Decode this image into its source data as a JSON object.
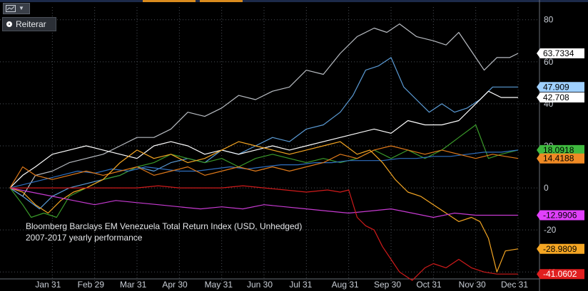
{
  "toolbar": {
    "chart_menu_icon": "line-chart-icon",
    "dropdown_icon": "caret-down-icon",
    "reiterar_label": "Reiterar"
  },
  "annotation": {
    "line1": "Bloomberg Barclays EM Venezuela Total Return Index (USD, Unhedged)",
    "line2": "2007-2017 yearly performance"
  },
  "colors": {
    "background": "#000000",
    "grid": "#4a4f57",
    "axis_text": "#c9ced6",
    "topbar": [
      "#1c2a4a",
      "#d98b1e",
      "#1c2a4a",
      "#d98b1e",
      "#1c2a4a"
    ]
  },
  "chart_data": {
    "type": "line",
    "title": "",
    "xlabel": "",
    "ylabel": "",
    "x_tick_labels": [
      "Jan 31",
      "Feb 29",
      "Mar 31",
      "Apr 30",
      "May 31",
      "Jun 30",
      "Jul 31",
      "Aug 31",
      "Sep 30",
      "Oct 31",
      "Nov 30",
      "Dec 31"
    ],
    "x_ticks": [
      1,
      2,
      3,
      4,
      5,
      6,
      7,
      8,
      9,
      10,
      11,
      12
    ],
    "xlim": [
      0,
      12
    ],
    "y_tick_labels": [
      "80",
      "60",
      "40",
      "20",
      "0",
      "-20",
      "-40"
    ],
    "y_ticks": [
      80,
      60,
      40,
      20,
      0,
      -20,
      -40
    ],
    "ylim": [
      -46,
      86
    ],
    "grid": true,
    "y_axis_side": "right",
    "series": [
      {
        "color": "#b8bcc2",
        "end_label": "63.7334",
        "label_bg": "#ffffff",
        "label_fg": "#000000",
        "x": [
          0,
          0.3,
          0.6,
          1.0,
          1.4,
          1.8,
          2.2,
          2.6,
          3.0,
          3.4,
          3.8,
          4.2,
          4.6,
          5.0,
          5.4,
          5.8,
          6.2,
          6.6,
          7.0,
          7.4,
          7.8,
          8.2,
          8.6,
          8.9,
          9.2,
          9.6,
          10.0,
          10.3,
          10.6,
          10.9,
          11.2,
          11.5,
          11.8,
          12.0
        ],
        "y": [
          0,
          -4,
          6,
          8,
          12,
          14,
          16,
          20,
          24,
          24,
          28,
          36,
          34,
          38,
          44,
          42,
          46,
          48,
          56,
          54,
          64,
          72,
          76,
          74,
          78,
          72,
          70,
          68,
          74,
          65,
          56,
          62,
          62,
          64
        ]
      },
      {
        "color": "#5b9bd5",
        "end_label": "47.909",
        "label_bg": "#9fd0ff",
        "label_fg": "#000000",
        "x": [
          0,
          0.3,
          0.7,
          1.0,
          1.4,
          1.8,
          2.2,
          2.6,
          3.0,
          3.4,
          3.8,
          4.2,
          4.6,
          5.0,
          5.4,
          5.8,
          6.2,
          6.6,
          7.0,
          7.4,
          7.8,
          8.1,
          8.4,
          8.7,
          9.0,
          9.3,
          9.6,
          9.9,
          10.2,
          10.5,
          10.8,
          11.1,
          11.4,
          11.7,
          12.0
        ],
        "y": [
          0,
          -4,
          -10,
          -4,
          0,
          2,
          4,
          6,
          10,
          8,
          12,
          14,
          12,
          18,
          16,
          20,
          24,
          22,
          28,
          30,
          36,
          44,
          56,
          58,
          62,
          48,
          42,
          36,
          40,
          36,
          38,
          42,
          48,
          48,
          48
        ]
      },
      {
        "color": "#ffffff",
        "end_label": "42.708",
        "label_bg": "#ffffff",
        "label_fg": "#000000",
        "x": [
          0,
          0.3,
          0.6,
          1.0,
          1.4,
          1.8,
          2.2,
          2.6,
          3.0,
          3.4,
          3.8,
          4.2,
          4.6,
          5.0,
          5.4,
          5.8,
          6.2,
          6.6,
          7.0,
          7.4,
          7.8,
          8.2,
          8.6,
          9.0,
          9.4,
          9.8,
          10.2,
          10.6,
          11.0,
          11.3,
          11.6,
          12.0
        ],
        "y": [
          0,
          6,
          10,
          16,
          18,
          20,
          18,
          16,
          14,
          20,
          22,
          20,
          16,
          18,
          16,
          18,
          20,
          18,
          20,
          22,
          24,
          26,
          28,
          26,
          32,
          30,
          30,
          32,
          40,
          46,
          43,
          43
        ]
      },
      {
        "color": "#3a9a2a",
        "end_label": "18.0918",
        "label_bg": "#3fb93f",
        "label_fg": "#000000",
        "x": [
          0,
          0.3,
          0.5,
          0.8,
          1.1,
          1.4,
          1.8,
          2.2,
          2.6,
          3.0,
          3.4,
          3.8,
          4.2,
          4.6,
          5.0,
          5.4,
          5.8,
          6.2,
          6.6,
          7.0,
          7.4,
          7.8,
          8.2,
          8.6,
          9.0,
          9.4,
          9.8,
          10.2,
          10.6,
          11.0,
          11.3,
          11.6,
          12.0
        ],
        "y": [
          0,
          -8,
          -14,
          -12,
          -14,
          -4,
          0,
          4,
          6,
          10,
          12,
          16,
          14,
          12,
          14,
          10,
          14,
          16,
          14,
          12,
          14,
          12,
          14,
          18,
          14,
          18,
          14,
          18,
          24,
          30,
          14,
          16,
          18
        ]
      },
      {
        "color": "#2f6fbf",
        "end_label": "",
        "label_bg": "",
        "label_fg": "",
        "x": [
          0,
          0.4,
          0.8,
          1.2,
          1.6,
          2.0,
          2.4,
          2.8,
          3.2,
          3.6,
          4.0,
          4.4,
          4.8,
          5.2,
          5.6,
          6.0,
          6.4,
          6.8,
          7.2,
          7.6,
          8.0,
          8.4,
          8.8,
          9.2,
          9.6,
          10.0,
          10.4,
          10.8,
          11.2,
          11.6,
          12.0
        ],
        "y": [
          0,
          2,
          4,
          6,
          8,
          7,
          9,
          8,
          10,
          9,
          8,
          8,
          9,
          10,
          9,
          10,
          11,
          11,
          12,
          12,
          13,
          13,
          13,
          14,
          14,
          15,
          15,
          16,
          17,
          17,
          18
        ]
      },
      {
        "color": "#e07a1a",
        "end_label": "14.4188",
        "label_bg": "#f08a24",
        "label_fg": "#000000",
        "x": [
          0,
          0.3,
          0.6,
          1.0,
          1.4,
          1.8,
          2.2,
          2.6,
          3.0,
          3.4,
          3.8,
          4.2,
          4.6,
          5.0,
          5.4,
          5.8,
          6.2,
          6.6,
          7.0,
          7.4,
          7.8,
          8.2,
          8.6,
          9.0,
          9.4,
          9.8,
          10.2,
          10.6,
          11.0,
          11.4,
          11.7,
          12.0
        ],
        "y": [
          0,
          10,
          6,
          4,
          6,
          8,
          6,
          8,
          10,
          6,
          8,
          10,
          6,
          8,
          10,
          8,
          10,
          8,
          10,
          12,
          16,
          14,
          18,
          20,
          18,
          16,
          18,
          16,
          14,
          16,
          15,
          14
        ]
      },
      {
        "color": "#f5a623",
        "end_label": "-28.9809",
        "label_bg": "#f5a623",
        "label_fg": "#000000",
        "x": [
          0,
          0.3,
          0.6,
          0.9,
          1.2,
          1.5,
          1.8,
          2.2,
          2.6,
          3.0,
          3.4,
          3.8,
          4.2,
          4.6,
          5.0,
          5.4,
          5.8,
          6.2,
          6.6,
          7.0,
          7.4,
          7.8,
          8.2,
          8.5,
          8.8,
          9.1,
          9.4,
          9.7,
          10.0,
          10.3,
          10.6,
          10.9,
          11.1,
          11.3,
          11.5,
          11.7,
          12.0
        ],
        "y": [
          0,
          -2,
          -8,
          -12,
          -6,
          -2,
          0,
          4,
          12,
          18,
          14,
          16,
          12,
          14,
          18,
          22,
          20,
          18,
          16,
          18,
          20,
          22,
          16,
          18,
          12,
          4,
          -2,
          -4,
          -8,
          -12,
          -16,
          -14,
          -16,
          -24,
          -40,
          -30,
          -29
        ]
      },
      {
        "color": "#c63ad1",
        "end_label": "-12.9906",
        "label_bg": "#e040fb",
        "label_fg": "#000000",
        "x": [
          0,
          0.5,
          1.0,
          1.5,
          2.0,
          2.5,
          3.0,
          3.5,
          4.0,
          4.5,
          5.0,
          5.5,
          6.0,
          6.5,
          7.0,
          7.5,
          8.0,
          8.5,
          9.0,
          9.5,
          10.0,
          10.5,
          11.0,
          11.5,
          12.0
        ],
        "y": [
          0,
          -2,
          -4,
          -6,
          -8,
          -6,
          -7,
          -8,
          -9,
          -10,
          -9,
          -10,
          -8,
          -9,
          -10,
          -11,
          -12,
          -11,
          -10,
          -12,
          -14,
          -12,
          -13,
          -13,
          -13
        ]
      },
      {
        "color": "#d01b1b",
        "end_label": "-41.0602",
        "label_bg": "#e01f1f",
        "label_fg": "#ffffff",
        "x": [
          0,
          0.5,
          1.0,
          1.5,
          2.0,
          2.5,
          3.0,
          3.5,
          4.0,
          4.5,
          5.0,
          5.5,
          6.0,
          6.5,
          7.0,
          7.5,
          7.8,
          8.0,
          8.2,
          8.4,
          8.6,
          8.8,
          9.0,
          9.2,
          9.5,
          9.8,
          10.0,
          10.3,
          10.6,
          10.9,
          11.2,
          11.5,
          12.0
        ],
        "y": [
          0,
          0,
          0,
          0,
          0,
          0,
          0,
          1,
          0,
          0,
          0,
          1,
          0,
          -1,
          -2,
          -1,
          -2,
          -1,
          -14,
          -18,
          -20,
          -28,
          -34,
          -40,
          -44,
          -38,
          -36,
          -38,
          -34,
          -38,
          -40,
          -41,
          -41
        ]
      }
    ]
  }
}
